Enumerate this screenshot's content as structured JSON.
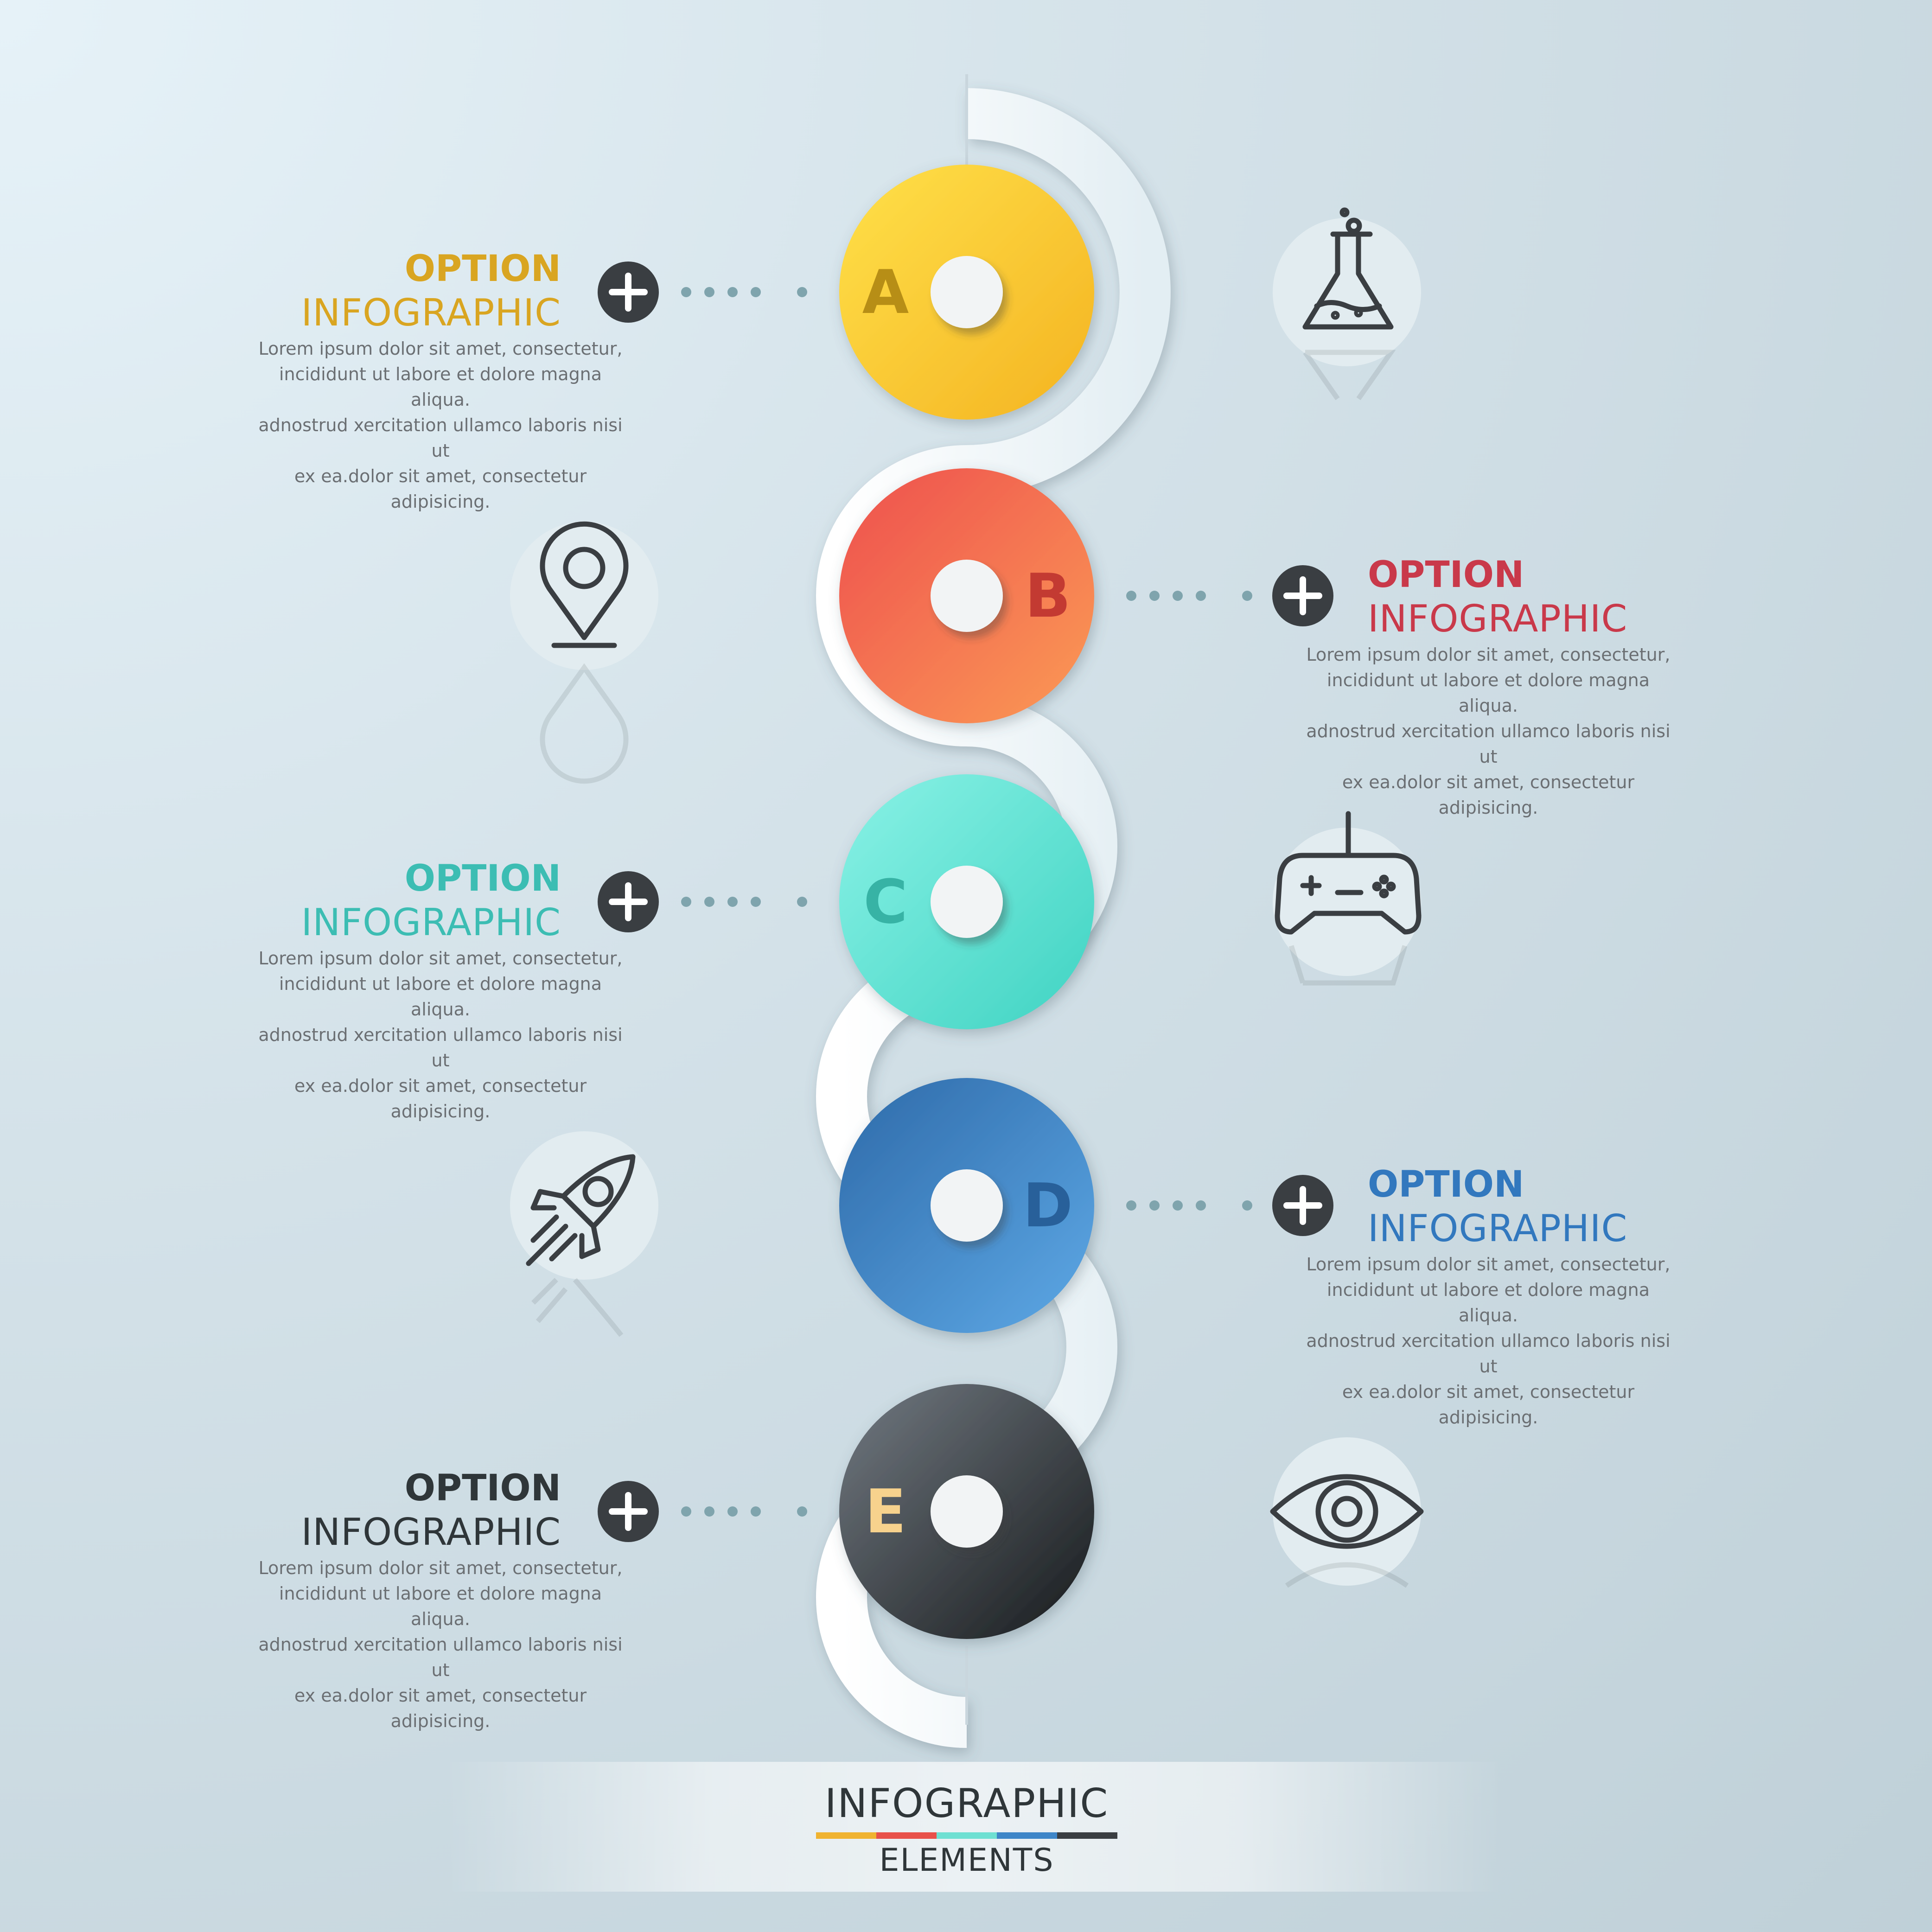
{
  "colors": {
    "a": "#f5c02a",
    "b": "#f26a4f",
    "c": "#5de0cf",
    "d": "#3f86c8",
    "e": "#3a3e42"
  },
  "items": [
    {
      "letter": "A",
      "side": "left",
      "title": "OPTION",
      "subtitle": "INFOGRAPHIC",
      "text": [
        "Lorem ipsum dolor sit amet, consectetur,",
        "incididunt ut labore et dolore magna aliqua.",
        "adnostrud xercitation ullamco laboris nisi ut",
        "ex ea.dolor sit amet, consectetur adipisicing."
      ],
      "title_color": "#d9a521",
      "icon": "flask-icon"
    },
    {
      "letter": "B",
      "side": "right",
      "title": "OPTION",
      "subtitle": "INFOGRAPHIC",
      "text": [
        "Lorem ipsum dolor sit amet, consectetur,",
        "incididunt ut labore et dolore magna aliqua.",
        "adnostrud xercitation ullamco laboris nisi ut",
        "ex ea.dolor sit amet, consectetur adipisicing."
      ],
      "title_color": "#c9394a",
      "icon": "location-pin-icon"
    },
    {
      "letter": "C",
      "side": "left",
      "title": "OPTION",
      "subtitle": "INFOGRAPHIC",
      "text": [
        "Lorem ipsum dolor sit amet, consectetur,",
        "incididunt ut labore et dolore magna aliqua.",
        "adnostrud xercitation ullamco laboris nisi ut",
        "ex ea.dolor sit amet, consectetur adipisicing."
      ],
      "title_color": "#3cbdb3",
      "icon": "gamepad-icon"
    },
    {
      "letter": "D",
      "side": "right",
      "title": "OPTION",
      "subtitle": "INFOGRAPHIC",
      "text": [
        "Lorem ipsum dolor sit amet, consectetur,",
        "incididunt ut labore et dolore magna aliqua.",
        "adnostrud xercitation ullamco laboris nisi ut",
        "ex ea.dolor sit amet, consectetur adipisicing."
      ],
      "title_color": "#3278be",
      "icon": "rocket-icon"
    },
    {
      "letter": "E",
      "side": "left",
      "title": "OPTION",
      "subtitle": "INFOGRAPHIC",
      "text": [
        "Lorem ipsum dolor sit amet, consectetur,",
        "incididunt ut labore et dolore magna aliqua.",
        "adnostrud xercitation ullamco laboris nisi ut",
        "ex ea.dolor sit amet, consectetur adipisicing."
      ],
      "title_color": "#2f3639",
      "icon": "eye-icon"
    }
  ],
  "footer": {
    "title": "INFOGRAPHIC",
    "subtitle": "ELEMENTS"
  }
}
